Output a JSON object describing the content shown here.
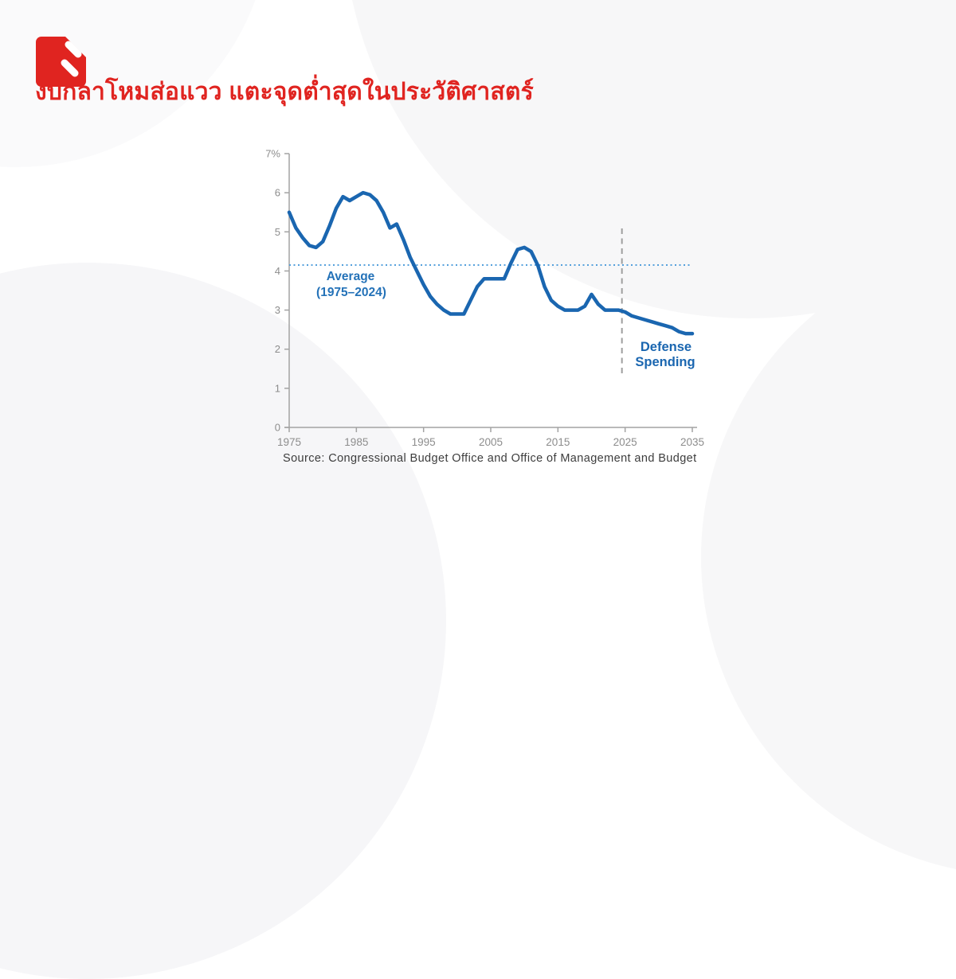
{
  "theme": {
    "accent_red": "#e02420",
    "line_blue": "#1a66b0",
    "light_blue": "#55a0dc",
    "divider_grey": "#9e9e9e",
    "axis_grey": "#a3a3a3",
    "label_grey": "#8d8d8d"
  },
  "header": {
    "headline": "งบกลาโหมส่อแวว แตะจุดต่ำสุดในประวัติศาสตร์"
  },
  "footer": {
    "source": "Source: Congressional Budget Office and Office of Management and Budget"
  },
  "chart_data": {
    "type": "line",
    "title": "",
    "xlabel": "",
    "ylabel": "",
    "xlim": [
      1975,
      2035
    ],
    "ylim": [
      0,
      7
    ],
    "grid": false,
    "legend_position": "inline-annotation",
    "x_ticks": [
      {
        "value": 1975,
        "label": "1975"
      },
      {
        "value": 1985,
        "label": "1985"
      },
      {
        "value": 1995,
        "label": "1995"
      },
      {
        "value": 2005,
        "label": "2005"
      },
      {
        "value": 2015,
        "label": "2015"
      },
      {
        "value": 2025,
        "label": "2025"
      },
      {
        "value": 2035,
        "label": "2035"
      }
    ],
    "y_ticks": [
      {
        "value": 0,
        "label": "0"
      },
      {
        "value": 1,
        "label": "1"
      },
      {
        "value": 2,
        "label": "2"
      },
      {
        "value": 3,
        "label": "3"
      },
      {
        "value": 4,
        "label": "4"
      },
      {
        "value": 5,
        "label": "5"
      },
      {
        "value": 6,
        "label": "6"
      },
      {
        "value": 7,
        "label": "7%"
      }
    ],
    "average_line": {
      "value": 4.15,
      "label": [
        "Average",
        "(1975–2024)"
      ]
    },
    "projection_divider": {
      "year": 2025
    },
    "series_label": [
      "Defense",
      "Spending"
    ],
    "series": [
      {
        "name": "Defense Spending (% of GDP)",
        "x": [
          1975,
          1976,
          1977,
          1978,
          1979,
          1980,
          1981,
          1982,
          1983,
          1984,
          1985,
          1986,
          1987,
          1988,
          1989,
          1990,
          1991,
          1992,
          1993,
          1994,
          1995,
          1996,
          1997,
          1998,
          1999,
          2000,
          2001,
          2002,
          2003,
          2004,
          2005,
          2006,
          2007,
          2008,
          2009,
          2010,
          2011,
          2012,
          2013,
          2014,
          2015,
          2016,
          2017,
          2018,
          2019,
          2020,
          2021,
          2022,
          2023,
          2024,
          2025,
          2026,
          2027,
          2028,
          2029,
          2030,
          2031,
          2032,
          2033,
          2034,
          2035
        ],
        "values": [
          5.5,
          5.1,
          4.85,
          4.65,
          4.6,
          4.75,
          5.15,
          5.6,
          5.9,
          5.8,
          5.9,
          6.0,
          5.95,
          5.8,
          5.5,
          5.1,
          5.2,
          4.8,
          4.35,
          4.0,
          3.65,
          3.35,
          3.15,
          3.0,
          2.9,
          2.9,
          2.9,
          3.25,
          3.6,
          3.8,
          3.8,
          3.8,
          3.8,
          4.2,
          4.55,
          4.6,
          4.5,
          4.15,
          3.6,
          3.25,
          3.1,
          3.0,
          3.0,
          3.0,
          3.1,
          3.4,
          3.15,
          3.0,
          3.0,
          3.0,
          2.95,
          2.85,
          2.8,
          2.75,
          2.7,
          2.65,
          2.6,
          2.55,
          2.45,
          2.4,
          2.4
        ]
      }
    ]
  }
}
